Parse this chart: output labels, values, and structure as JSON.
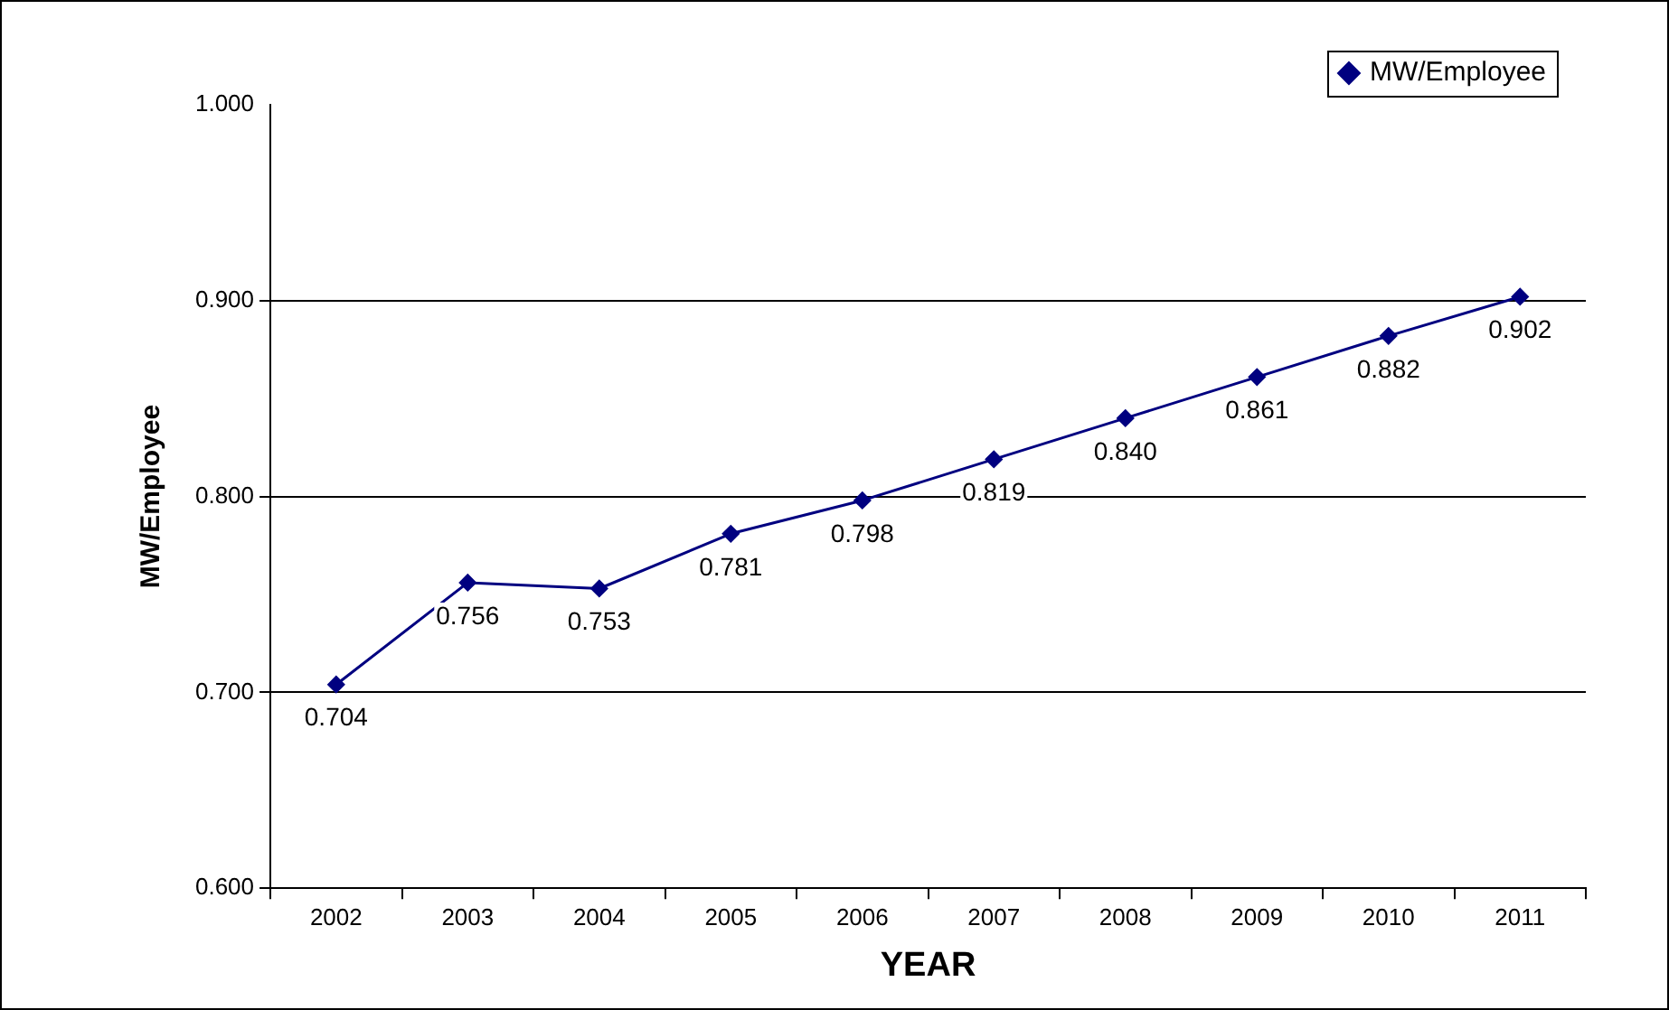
{
  "chart_data": {
    "type": "line",
    "xlabel": "YEAR",
    "ylabel": "MW/Employee",
    "categories": [
      "2002",
      "2003",
      "2004",
      "2005",
      "2006",
      "2007",
      "2008",
      "2009",
      "2010",
      "2011"
    ],
    "series": [
      {
        "name": "MW/Employee",
        "color": "#000080",
        "values": [
          0.704,
          0.756,
          0.753,
          0.781,
          0.798,
          0.819,
          0.84,
          0.861,
          0.882,
          0.902
        ],
        "value_labels": [
          "0.704",
          "0.756",
          "0.753",
          "0.781",
          "0.798",
          "0.819",
          "0.840",
          "0.861",
          "0.882",
          "0.902"
        ]
      }
    ],
    "ylim": [
      0.6,
      1.0
    ],
    "yticks": [
      {
        "value": 0.6,
        "label": "0.600"
      },
      {
        "value": 0.7,
        "label": "0.700"
      },
      {
        "value": 0.8,
        "label": "0.800"
      },
      {
        "value": 0.9,
        "label": "0.900"
      },
      {
        "value": 1.0,
        "label": "1.000"
      }
    ],
    "grid": "y",
    "legend": "top right",
    "marker": "diamond",
    "line_style": "solid"
  }
}
